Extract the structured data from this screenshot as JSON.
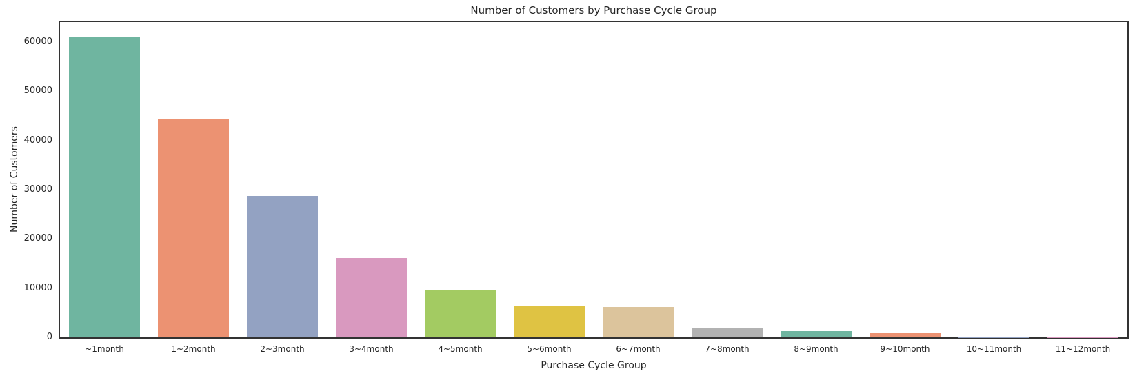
{
  "chart_data": {
    "type": "bar",
    "title": "Number of Customers by Purchase Cycle Group",
    "xlabel": "Purchase Cycle Group",
    "ylabel": "Number of Customers",
    "categories": [
      "~1month",
      "1~2month",
      "2~3month",
      "3~4month",
      "4~5month",
      "5~6month",
      "6~7month",
      "7~8month",
      "8~9month",
      "9~10month",
      "10~11month",
      "11~12month"
    ],
    "values": [
      61000,
      44500,
      28700,
      16100,
      9700,
      6500,
      6200,
      1900,
      1300,
      800,
      40,
      15
    ],
    "yticks": [
      0,
      10000,
      20000,
      30000,
      40000,
      50000,
      60000
    ],
    "ylim": [
      0,
      64050
    ],
    "grid": false,
    "legend": null,
    "bar_width_fraction": 0.8,
    "bar_colors": [
      "#6fb5a0",
      "#ec9272",
      "#93a2c2",
      "#d999bf",
      "#a3cb62",
      "#dfc343",
      "#dcc49c",
      "#b2b2b2",
      "#6fb5a0",
      "#ec9272",
      "#93a2c2",
      "#d999bf"
    ],
    "axes_edge_color": "#333333",
    "background_color": "#ffffff",
    "text_color": "#262626"
  }
}
